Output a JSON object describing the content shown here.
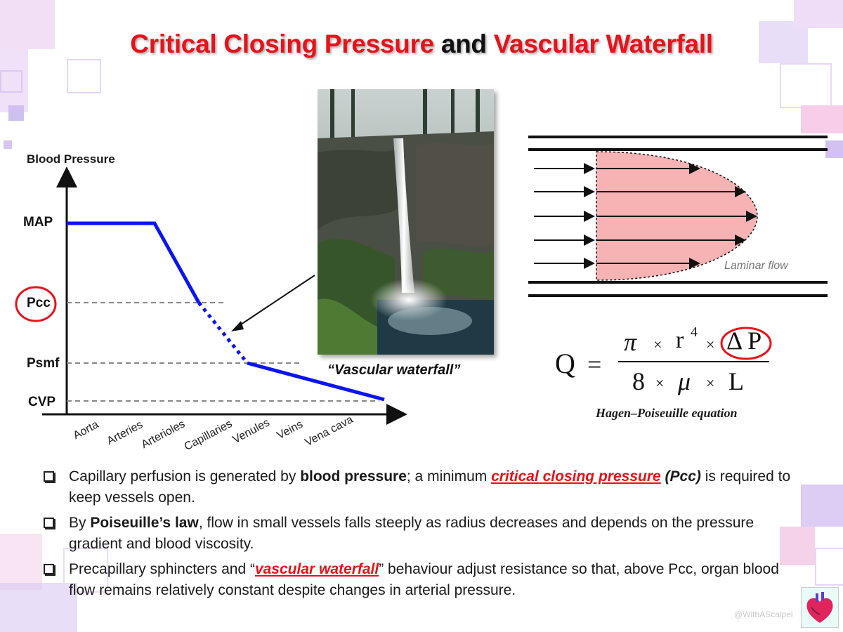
{
  "title": {
    "part1": "Critical Closing Pressure",
    "part2": "and",
    "part3": "Vascular Waterfall"
  },
  "pressure_chart": {
    "y_axis_title": "Blood Pressure",
    "y_levels": [
      "MAP",
      "Pcc",
      "Psmf",
      "CVP"
    ],
    "x_categories": [
      "Aorta",
      "Arteries",
      "Arterioles",
      "Capillaries",
      "Venules",
      "Veins",
      "Vena cava"
    ]
  },
  "photo": {
    "caption": "“Vascular waterfall”"
  },
  "laminar": {
    "label": "Laminar flow"
  },
  "equation": {
    "lhs": "Q",
    "eq": "=",
    "num_pi": "π",
    "num_times1": "×",
    "num_r": "r",
    "num_exp": "4",
    "num_times2": "×",
    "num_dp": "Δ P",
    "den_8": "8",
    "den_times1": "×",
    "den_mu": "μ",
    "den_times2": "×",
    "den_l": "L",
    "caption": "Hagen–Poiseuille equation"
  },
  "bullets": [
    {
      "a": "Capillary perfusion is generated by ",
      "b": "blood pressure",
      "c": "; a minimum ",
      "d": "critical closing pressure",
      "e": " ",
      "f": "(Pcc)",
      "g": " is required to keep vessels open."
    },
    {
      "a": "By ",
      "b": "Poiseuille’s law",
      "c": ", flow in small vessels falls steeply as radius decreases and depends on the pressure gradient and blood viscosity."
    },
    {
      "a": "Precapillary sphincters and “",
      "b": "vascular waterfall",
      "c": "” behaviour adjust resistance so that, above Pcc, organ blood flow remains relatively constant despite changes in arterial pressure."
    }
  ],
  "watermark": "@WithAScalpel",
  "colors": {
    "accent_red": "#e8121a",
    "line_blue": "#0a14f0",
    "parabola_fill": "#f7b2b4",
    "deco_lavender": "#d9c8f4",
    "deco_pink": "#f7d0ea"
  }
}
